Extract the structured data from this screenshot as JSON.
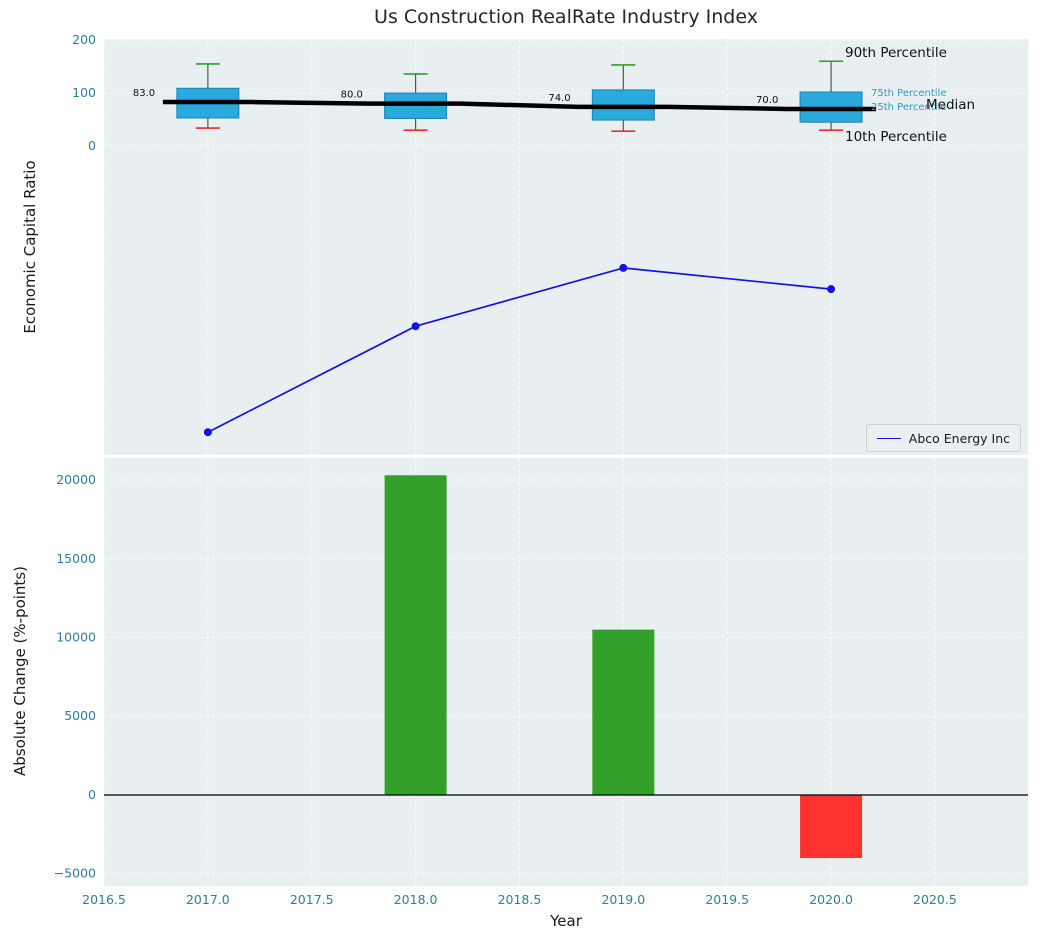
{
  "title": "Us Construction RealRate Industry Index",
  "colors": {
    "panel_bg": "#e9eef0",
    "grid": "#ffffff",
    "box_fill": "#29a9dc",
    "box_edge": "#1a85b5",
    "median_line": "#000000",
    "whisker": "#555555",
    "cap_top": "#2ca02c",
    "cap_bottom": "#e03131",
    "series_line": "#1212e6",
    "bar_positive": "#33a02c",
    "bar_negative": "#ff3232",
    "tick_label": "#2e7e9e",
    "zero_line": "#000000"
  },
  "chart_data": [
    {
      "type": "boxplot+line",
      "title": "",
      "ylabel": "Economic Capital Ratio",
      "yticks": [
        200,
        100,
        0
      ],
      "ylim": [
        -583,
        202
      ],
      "xlim": [
        2016.5,
        2020.948
      ],
      "grid": true,
      "boxes": [
        {
          "year": 2017,
          "median": 83.0,
          "q1": 53,
          "q3": 109,
          "p10": 34,
          "p90": 155,
          "label": "83.0"
        },
        {
          "year": 2018,
          "median": 80.0,
          "q1": 52,
          "q3": 100,
          "p10": 30,
          "p90": 136,
          "label": "80.0"
        },
        {
          "year": 2019,
          "median": 74.0,
          "q1": 49,
          "q3": 106,
          "p10": 28,
          "p90": 153,
          "label": "74.0"
        },
        {
          "year": 2020,
          "median": 70.0,
          "q1": 45,
          "q3": 102,
          "p10": 30,
          "p90": 160,
          "label": "70.0"
        }
      ],
      "series": [
        {
          "name": "Abco Energy Inc",
          "x": [
            2017,
            2018,
            2019,
            2020
          ],
          "values": [
            -540,
            -340,
            -230,
            -270
          ]
        }
      ],
      "annotations": [
        "90th Percentile",
        "75th Percentile",
        "25th Percentile",
        "Median",
        "10th Percentile"
      ],
      "legend": [
        "Abco Energy Inc"
      ],
      "legend_position": "lower right"
    },
    {
      "type": "bar",
      "ylabel": "Absolute Change (%-points)",
      "xlabel": "Year",
      "yticks": [
        20000,
        15000,
        10000,
        5000,
        0,
        -5000
      ],
      "ylim": [
        -5778,
        21397
      ],
      "xticks": [
        2016.5,
        2017.0,
        2017.5,
        2018.0,
        2018.5,
        2019.0,
        2019.5,
        2020.0,
        2020.5
      ],
      "xlim": [
        2016.5,
        2020.948
      ],
      "grid": true,
      "bars": [
        {
          "year": 2018,
          "value": 20300
        },
        {
          "year": 2019,
          "value": 10500
        },
        {
          "year": 2020,
          "value": -4000
        }
      ]
    }
  ]
}
